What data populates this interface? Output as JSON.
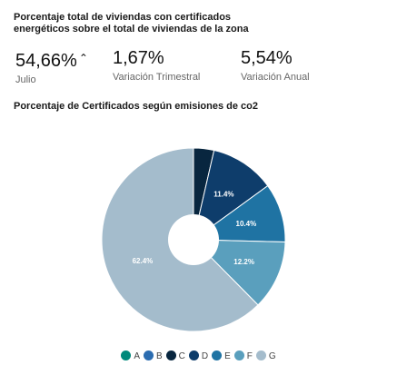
{
  "header": {
    "title": "Porcentaje total de viviendas con certificados energéticos sobre el total de viviendas de la zona"
  },
  "kpis": [
    {
      "value": "54,66%",
      "trend_icon": "triangle-up-icon",
      "trend_glyph": "⌃",
      "label": "Julio"
    },
    {
      "value": "1,67%",
      "label": "Variación Trimestral"
    },
    {
      "value": "5,54%",
      "label": "Variación Anual"
    }
  ],
  "chart_data": {
    "type": "pie",
    "title": "Porcentaje de Certificados según emisiones de co2",
    "categories": [
      "A",
      "B",
      "C",
      "D",
      "E",
      "F",
      "G"
    ],
    "values": [
      0,
      0,
      3.6,
      11.4,
      10.4,
      12.2,
      62.4
    ],
    "data_labels": [
      "",
      "",
      "",
      "11.4%",
      "10.4%",
      "12.2%",
      "62.4%"
    ],
    "colors": [
      "#00897b",
      "#2b6cb0",
      "#08263f",
      "#0e3d6b",
      "#1f73a3",
      "#5a9fbd",
      "#a4bccc"
    ],
    "legend_position": "bottom",
    "hole": true
  }
}
